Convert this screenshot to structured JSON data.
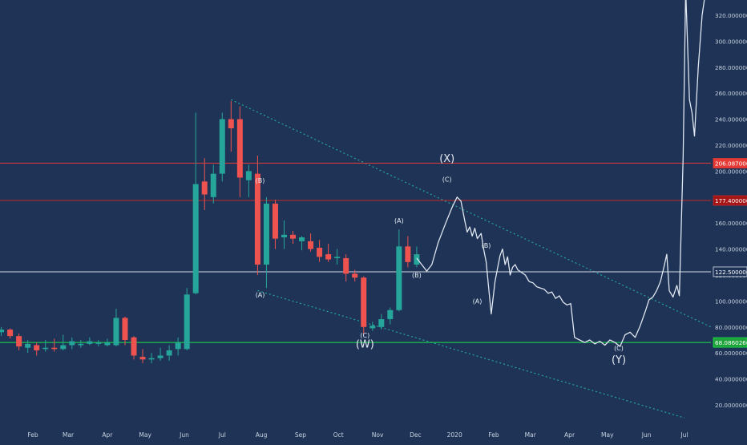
{
  "chart_data": {
    "type": "candlestick",
    "y_axis": {
      "ticks": [
        {
          "value": 20,
          "label": "20.00000000"
        },
        {
          "value": 40,
          "label": "40.00000000"
        },
        {
          "value": 60,
          "label": "60.00000000"
        },
        {
          "value": 80,
          "label": "80.00000000"
        },
        {
          "value": 100,
          "label": "100.00000000"
        },
        {
          "value": 120,
          "label": "120.00000000"
        },
        {
          "value": 140,
          "label": "140.00000000"
        },
        {
          "value": 160,
          "label": "160.00000000"
        },
        {
          "value": 180,
          "label": "180.00000000"
        },
        {
          "value": 200,
          "label": "200.00000000"
        },
        {
          "value": 220,
          "label": "220.00000000"
        },
        {
          "value": 240,
          "label": "240.00000000"
        },
        {
          "value": 260,
          "label": "260.00000000"
        },
        {
          "value": 280,
          "label": "280.00000000"
        },
        {
          "value": 300,
          "label": "300.00000000"
        },
        {
          "value": 320,
          "label": "320.00000000"
        }
      ],
      "ylim": [
        5,
        335
      ]
    },
    "x_axis": {
      "ticks": [
        {
          "label": "Feb",
          "date": "2019-02-01"
        },
        {
          "label": "Mar",
          "date": "2019-03-01"
        },
        {
          "label": "Apr",
          "date": "2019-04-01"
        },
        {
          "label": "May",
          "date": "2019-05-01"
        },
        {
          "label": "Jun",
          "date": "2019-06-01"
        },
        {
          "label": "Jul",
          "date": "2019-07-01"
        },
        {
          "label": "Aug",
          "date": "2019-08-01"
        },
        {
          "label": "Sep",
          "date": "2019-09-01"
        },
        {
          "label": "Oct",
          "date": "2019-10-01"
        },
        {
          "label": "Nov",
          "date": "2019-11-01"
        },
        {
          "label": "Dec",
          "date": "2019-12-01"
        },
        {
          "label": "2020",
          "date": "2020-01-01"
        },
        {
          "label": "Feb",
          "date": "2020-02-01"
        },
        {
          "label": "Mar",
          "date": "2020-03-01"
        },
        {
          "label": "Apr",
          "date": "2020-04-01"
        },
        {
          "label": "May",
          "date": "2020-05-01"
        },
        {
          "label": "Jun",
          "date": "2020-06-01"
        },
        {
          "label": "Jul",
          "date": "2020-07-01"
        }
      ],
      "xlim": [
        "2019-01-06",
        "2020-07-22"
      ]
    },
    "candles": [
      {
        "date": "2019-01-07",
        "open": 76,
        "high": 80,
        "low": 73,
        "close": 78
      },
      {
        "date": "2019-01-14",
        "open": 78,
        "high": 79,
        "low": 71,
        "close": 73
      },
      {
        "date": "2019-01-21",
        "open": 73,
        "high": 75,
        "low": 62,
        "close": 65
      },
      {
        "date": "2019-01-28",
        "open": 64,
        "high": 70,
        "low": 60,
        "close": 67
      },
      {
        "date": "2019-02-04",
        "open": 66,
        "high": 68,
        "low": 58,
        "close": 62
      },
      {
        "date": "2019-02-11",
        "open": 63,
        "high": 70,
        "low": 61,
        "close": 64
      },
      {
        "date": "2019-02-18",
        "open": 64,
        "high": 71,
        "low": 61,
        "close": 63
      },
      {
        "date": "2019-02-25",
        "open": 63,
        "high": 74,
        "low": 62,
        "close": 66
      },
      {
        "date": "2019-03-04",
        "open": 66,
        "high": 72,
        "low": 63,
        "close": 69
      },
      {
        "date": "2019-03-11",
        "open": 66,
        "high": 70,
        "low": 64,
        "close": 67
      },
      {
        "date": "2019-03-18",
        "open": 67,
        "high": 72,
        "low": 66,
        "close": 69
      },
      {
        "date": "2019-03-25",
        "open": 67,
        "high": 70,
        "low": 65,
        "close": 68
      },
      {
        "date": "2019-04-01",
        "open": 66,
        "high": 71,
        "low": 65,
        "close": 68
      },
      {
        "date": "2019-04-08",
        "open": 66,
        "high": 94,
        "low": 65,
        "close": 87
      },
      {
        "date": "2019-04-15",
        "open": 87,
        "high": 88,
        "low": 66,
        "close": 70
      },
      {
        "date": "2019-04-22",
        "open": 72,
        "high": 73,
        "low": 55,
        "close": 58
      },
      {
        "date": "2019-04-29",
        "open": 57,
        "high": 63,
        "low": 52,
        "close": 55
      },
      {
        "date": "2019-05-06",
        "open": 55,
        "high": 60,
        "low": 52,
        "close": 56
      },
      {
        "date": "2019-05-13",
        "open": 56,
        "high": 64,
        "low": 54,
        "close": 58
      },
      {
        "date": "2019-05-20",
        "open": 58,
        "high": 66,
        "low": 54,
        "close": 62
      },
      {
        "date": "2019-05-27",
        "open": 63,
        "high": 72,
        "low": 58,
        "close": 68
      },
      {
        "date": "2019-06-03",
        "open": 63,
        "high": 110,
        "low": 62,
        "close": 105
      },
      {
        "date": "2019-06-10",
        "open": 106,
        "high": 245,
        "low": 105,
        "close": 190
      },
      {
        "date": "2019-06-17",
        "open": 192,
        "high": 210,
        "low": 170,
        "close": 182
      },
      {
        "date": "2019-06-24",
        "open": 180,
        "high": 205,
        "low": 175,
        "close": 198
      },
      {
        "date": "2019-07-01",
        "open": 198,
        "high": 245,
        "low": 192,
        "close": 240
      },
      {
        "date": "2019-07-08",
        "open": 240,
        "high": 254,
        "low": 215,
        "close": 233
      },
      {
        "date": "2019-07-15",
        "open": 240,
        "high": 250,
        "low": 180,
        "close": 195
      },
      {
        "date": "2019-07-22",
        "open": 193,
        "high": 205,
        "low": 180,
        "close": 200
      },
      {
        "date": "2019-07-29",
        "open": 198,
        "high": 212,
        "low": 120,
        "close": 128
      },
      {
        "date": "2019-08-05",
        "open": 128,
        "high": 180,
        "low": 110,
        "close": 175
      },
      {
        "date": "2019-08-12",
        "open": 175,
        "high": 178,
        "low": 140,
        "close": 148
      },
      {
        "date": "2019-08-19",
        "open": 149,
        "high": 162,
        "low": 140,
        "close": 151
      },
      {
        "date": "2019-08-26",
        "open": 151,
        "high": 154,
        "low": 144,
        "close": 148
      },
      {
        "date": "2019-09-02",
        "open": 146,
        "high": 150,
        "low": 139,
        "close": 149
      },
      {
        "date": "2019-09-09",
        "open": 146,
        "high": 152,
        "low": 138,
        "close": 140
      },
      {
        "date": "2019-09-16",
        "open": 141,
        "high": 147,
        "low": 130,
        "close": 134
      },
      {
        "date": "2019-09-23",
        "open": 136,
        "high": 144,
        "low": 130,
        "close": 132
      },
      {
        "date": "2019-09-30",
        "open": 133,
        "high": 140,
        "low": 128,
        "close": 134
      },
      {
        "date": "2019-10-07",
        "open": 133,
        "high": 136,
        "low": 115,
        "close": 121
      },
      {
        "date": "2019-10-14",
        "open": 121,
        "high": 124,
        "low": 115,
        "close": 118
      },
      {
        "date": "2019-10-21",
        "open": 118,
        "high": 119,
        "low": 74,
        "close": 80
      },
      {
        "date": "2019-10-28",
        "open": 79,
        "high": 84,
        "low": 77,
        "close": 81
      },
      {
        "date": "2019-11-04",
        "open": 80,
        "high": 90,
        "low": 78,
        "close": 86
      },
      {
        "date": "2019-11-11",
        "open": 86,
        "high": 95,
        "low": 82,
        "close": 93
      },
      {
        "date": "2019-11-18",
        "open": 93,
        "high": 155,
        "low": 92,
        "close": 142
      },
      {
        "date": "2019-11-25",
        "open": 142,
        "high": 150,
        "low": 126,
        "close": 130
      },
      {
        "date": "2019-12-02",
        "open": 128,
        "high": 142,
        "low": 126,
        "close": 136
      }
    ],
    "projection_line": [
      {
        "date": "2019-12-02",
        "value": 133
      },
      {
        "date": "2019-12-06",
        "value": 128
      },
      {
        "date": "2019-12-10",
        "value": 123
      },
      {
        "date": "2019-12-14",
        "value": 128
      },
      {
        "date": "2019-12-19",
        "value": 145
      },
      {
        "date": "2019-12-25",
        "value": 160
      },
      {
        "date": "2019-12-30",
        "value": 172
      },
      {
        "date": "2020-01-03",
        "value": 180
      },
      {
        "date": "2020-01-06",
        "value": 177
      },
      {
        "date": "2020-01-09",
        "value": 162
      },
      {
        "date": "2020-01-11",
        "value": 153
      },
      {
        "date": "2020-01-13",
        "value": 157
      },
      {
        "date": "2020-01-15",
        "value": 150
      },
      {
        "date": "2020-01-17",
        "value": 156
      },
      {
        "date": "2020-01-19",
        "value": 148
      },
      {
        "date": "2020-01-22",
        "value": 152
      },
      {
        "date": "2020-01-24",
        "value": 140
      },
      {
        "date": "2020-01-26",
        "value": 130
      },
      {
        "date": "2020-01-28",
        "value": 110
      },
      {
        "date": "2020-01-30",
        "value": 90
      },
      {
        "date": "2020-02-02",
        "value": 115
      },
      {
        "date": "2020-02-04",
        "value": 125
      },
      {
        "date": "2020-02-06",
        "value": 135
      },
      {
        "date": "2020-02-08",
        "value": 140
      },
      {
        "date": "2020-02-10",
        "value": 128
      },
      {
        "date": "2020-02-12",
        "value": 134
      },
      {
        "date": "2020-02-14",
        "value": 120
      },
      {
        "date": "2020-02-16",
        "value": 126
      },
      {
        "date": "2020-02-18",
        "value": 128
      },
      {
        "date": "2020-02-20",
        "value": 124
      },
      {
        "date": "2020-02-23",
        "value": 122
      },
      {
        "date": "2020-02-26",
        "value": 120
      },
      {
        "date": "2020-02-29",
        "value": 115
      },
      {
        "date": "2020-03-03",
        "value": 114
      },
      {
        "date": "2020-03-06",
        "value": 111
      },
      {
        "date": "2020-03-09",
        "value": 110
      },
      {
        "date": "2020-03-12",
        "value": 109
      },
      {
        "date": "2020-03-15",
        "value": 106
      },
      {
        "date": "2020-03-18",
        "value": 107
      },
      {
        "date": "2020-03-21",
        "value": 102
      },
      {
        "date": "2020-03-24",
        "value": 104
      },
      {
        "date": "2020-03-27",
        "value": 99
      },
      {
        "date": "2020-03-30",
        "value": 97
      },
      {
        "date": "2020-04-02",
        "value": 98
      },
      {
        "date": "2020-04-05",
        "value": 72
      },
      {
        "date": "2020-04-09",
        "value": 70
      },
      {
        "date": "2020-04-13",
        "value": 68
      },
      {
        "date": "2020-04-17",
        "value": 70
      },
      {
        "date": "2020-04-21",
        "value": 67
      },
      {
        "date": "2020-04-25",
        "value": 69
      },
      {
        "date": "2020-04-29",
        "value": 66
      },
      {
        "date": "2020-05-03",
        "value": 70
      },
      {
        "date": "2020-05-07",
        "value": 68
      },
      {
        "date": "2020-05-11",
        "value": 65
      },
      {
        "date": "2020-05-15",
        "value": 74
      },
      {
        "date": "2020-05-19",
        "value": 76
      },
      {
        "date": "2020-05-23",
        "value": 72
      },
      {
        "date": "2020-05-27",
        "value": 81
      },
      {
        "date": "2020-05-31",
        "value": 92
      },
      {
        "date": "2020-06-03",
        "value": 101
      },
      {
        "date": "2020-06-06",
        "value": 103
      },
      {
        "date": "2020-06-09",
        "value": 108
      },
      {
        "date": "2020-06-12",
        "value": 115
      },
      {
        "date": "2020-06-15",
        "value": 127
      },
      {
        "date": "2020-06-17",
        "value": 136
      },
      {
        "date": "2020-06-19",
        "value": 108
      },
      {
        "date": "2020-06-22",
        "value": 103
      },
      {
        "date": "2020-06-25",
        "value": 112
      },
      {
        "date": "2020-06-27",
        "value": 104
      },
      {
        "date": "2020-06-30",
        "value": 210
      },
      {
        "date": "2020-07-02",
        "value": 340
      },
      {
        "date": "2020-07-05",
        "value": 255
      },
      {
        "date": "2020-07-07",
        "value": 245
      },
      {
        "date": "2020-07-09",
        "value": 227
      },
      {
        "date": "2020-07-12",
        "value": 280
      },
      {
        "date": "2020-07-15",
        "value": 320
      },
      {
        "date": "2020-07-18",
        "value": 340
      }
    ],
    "horizontal_levels": [
      {
        "value": 206.087,
        "label": "206.08700000",
        "color": "#e53935",
        "label_bg": "#e53935"
      },
      {
        "value": 177.4,
        "label": "177.40000000",
        "color": "#c62828",
        "label_bg": "#a51515"
      },
      {
        "value": 122.5,
        "label": "122.50000000",
        "color": "#d5dde8",
        "label_bg": "#1e3355"
      },
      {
        "value": 68.086,
        "label": "68.08602666",
        "color": "#18e34a",
        "label_bg": "#1ea33a"
      }
    ],
    "trend_lines": [
      {
        "from": {
          "date": "2019-07-08",
          "value": 255
        },
        "to": {
          "date": "2020-07-22",
          "value": 80
        },
        "color": "#26a69a"
      },
      {
        "from": {
          "date": "2019-07-29",
          "value": 108
        },
        "to": {
          "date": "2020-07-01",
          "value": 10
        },
        "color": "#26a69a"
      }
    ],
    "wave_labels": [
      {
        "text": "(B)",
        "date": "2019-07-31",
        "value": 191
      },
      {
        "text": "(A)",
        "date": "2019-07-31",
        "value": 103
      },
      {
        "text": "(C)",
        "date": "2019-10-22",
        "value": 72
      },
      {
        "text": "(W)",
        "date": "2019-10-22",
        "value": 64
      },
      {
        "text": "(A)",
        "date": "2019-11-18",
        "value": 160
      },
      {
        "text": "(B)",
        "date": "2019-12-02",
        "value": 118
      },
      {
        "text": "(X)",
        "date": "2019-12-26",
        "value": 207
      },
      {
        "text": "(C)",
        "date": "2019-12-26",
        "value": 192
      },
      {
        "text": "(B)",
        "date": "2020-01-26",
        "value": 141
      },
      {
        "text": "(A)",
        "date": "2020-01-19",
        "value": 98
      },
      {
        "text": "(C)",
        "date": "2020-05-10",
        "value": 62
      },
      {
        "text": "(Y)",
        "date": "2020-05-10",
        "value": 52
      }
    ],
    "colors": {
      "background": "#1e3355",
      "up": "#26a69a",
      "down": "#ef5350",
      "line": "#dfe6f0",
      "axis_text": "#c8d2e0"
    }
  }
}
